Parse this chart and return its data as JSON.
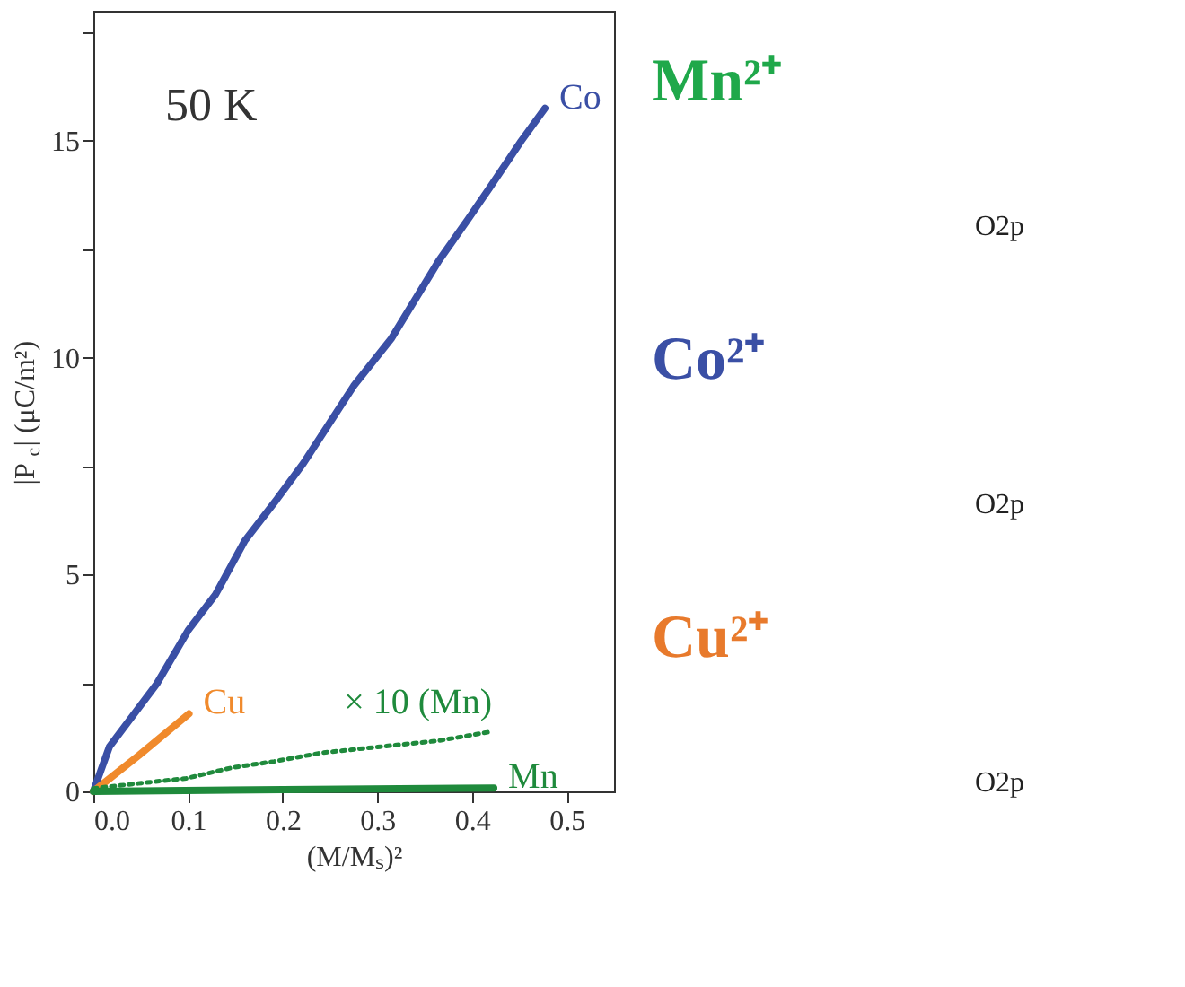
{
  "chart_data": [
    {
      "type": "line",
      "xlabel": "(M/Mₛ)²",
      "ylabel": "|P$_{c}$| (μC/m²)",
      "annotations": [
        "50 K"
      ],
      "xlim": [
        0,
        0.55
      ],
      "ylim": [
        0,
        18
      ],
      "xticks": [
        {
          "value": 0,
          "label": "0.0"
        },
        0.1,
        0.2,
        0.3,
        0.4,
        0.5
      ],
      "yticks": [
        0,
        {
          "value": 2.5,
          "label": null
        },
        5,
        {
          "value": 7.5,
          "label": null
        },
        10,
        {
          "value": 12.5,
          "label": null
        },
        15,
        {
          "value": 17.5,
          "label": null
        }
      ],
      "grid": false,
      "series": [
        {
          "name": "Co",
          "color": "#3a4fa5",
          "line_style": "solid",
          "x": [
            0,
            0.017,
            0.067,
            0.1,
            0.129,
            0.16,
            0.194,
            0.222,
            0.275,
            0.315,
            0.365,
            0.396,
            0.418,
            0.452,
            0.477
          ],
          "values": [
            0,
            1.03,
            2.48,
            3.71,
            4.54,
            5.78,
            6.74,
            7.57,
            9.35,
            10.45,
            12.24,
            13.2,
            13.9,
            15.0,
            15.75
          ]
        },
        {
          "name": "Cu",
          "color": "#f08a2c",
          "line_style": "solid",
          "x": [
            0,
            0.048,
            0.101
          ],
          "values": [
            0,
            0.83,
            1.79
          ]
        },
        {
          "name": "× 10 (Mn)",
          "color": "#1f8a3c",
          "line_style": "dotted",
          "x": [
            0,
            0.054,
            0.098,
            0.147,
            0.191,
            0.241,
            0.303,
            0.365,
            0.421
          ],
          "values": [
            0.07,
            0.2,
            0.3,
            0.55,
            0.69,
            0.89,
            1.03,
            1.17,
            1.38
          ]
        },
        {
          "name": "Mn",
          "color": "#1f8a3c",
          "line_style": "solid",
          "x": [
            0,
            0.2,
            0.423
          ],
          "values": [
            0,
            0.04,
            0.08
          ]
        }
      ]
    },
    {
      "type": "other",
      "annotations": [
        "Mn²⁺",
        "O2p",
        "Co²⁺",
        "O2p",
        "Cu²⁺",
        "O2p"
      ],
      "colors": [
        "#1fa84a",
        "#222222",
        "#3a4fa5",
        "#222222",
        "#e87a2c",
        "#222222"
      ]
    }
  ]
}
